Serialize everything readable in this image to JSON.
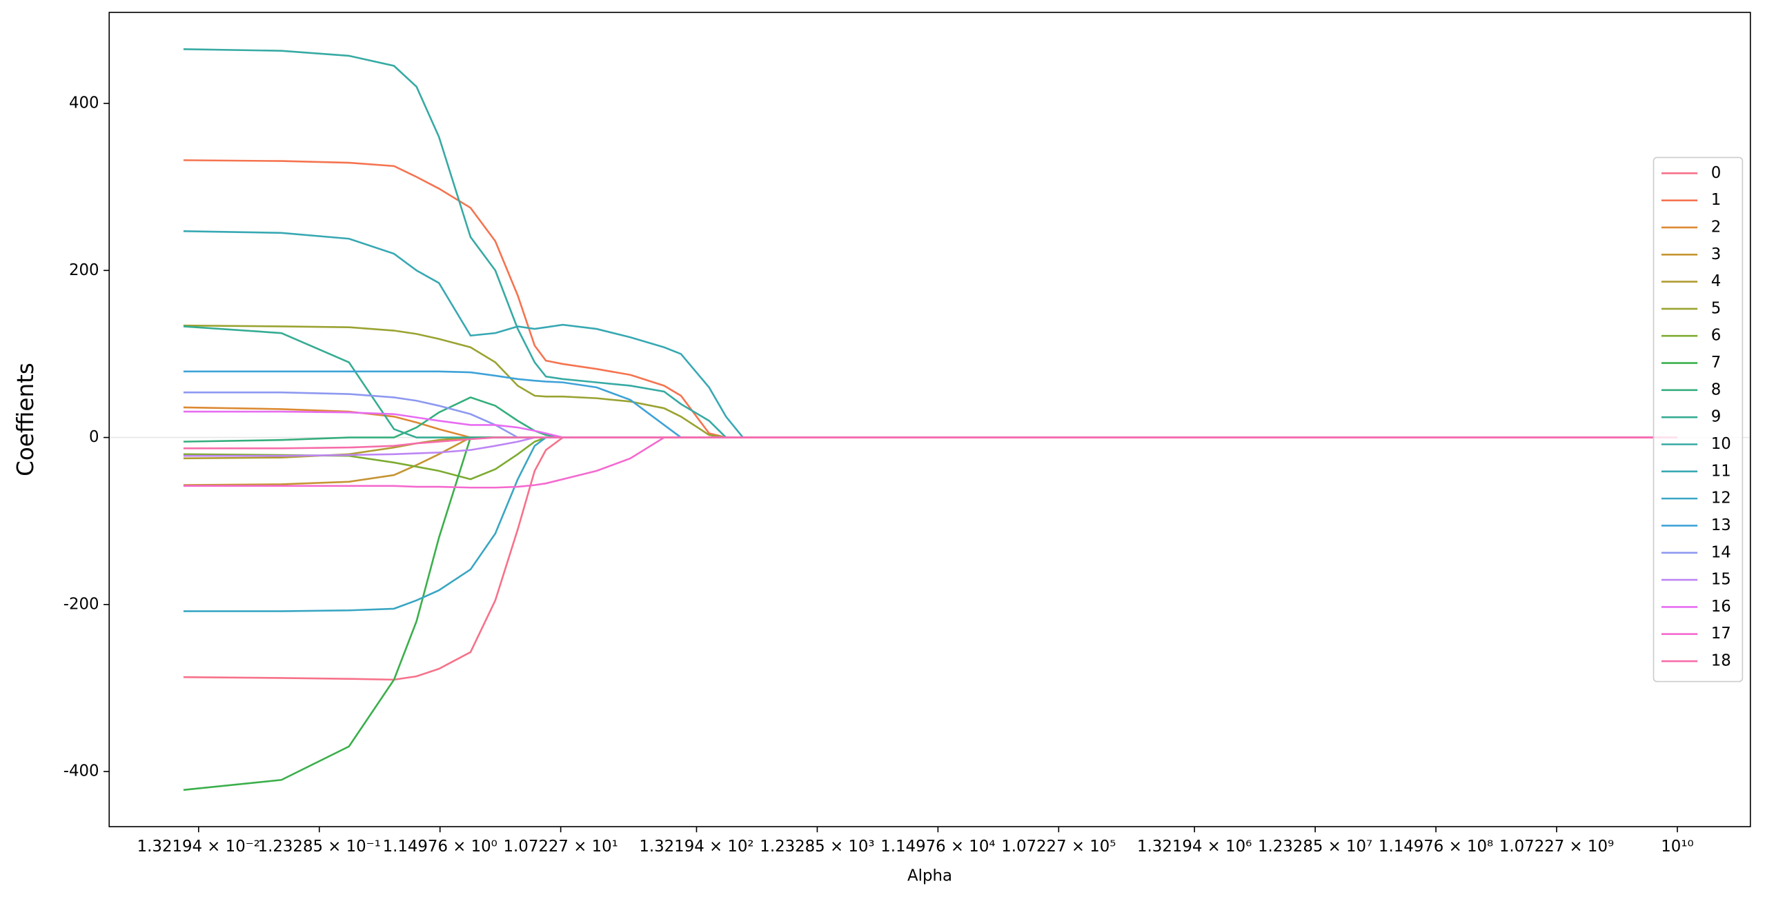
{
  "chart_data": {
    "type": "line",
    "xlabel": "Alpha",
    "ylabel": "Coeffients",
    "xscale": "log",
    "x": [
      0.01,
      0.0612,
      0.2133,
      0.4909,
      0.7447,
      1.127,
      2.022,
      3.198,
      4.842,
      6.62,
      8.15,
      11.14,
      20.8,
      38.9,
      72.6,
      99.1,
      166.7,
      228,
      312,
      716,
      10000000000
    ],
    "xlim": [
      0.00253,
      38600000000
    ],
    "ylim": [
      -466,
      509
    ],
    "xticks": [
      {
        "value": 0.0132194,
        "label": "1.32194 × 10⁻²"
      },
      {
        "value": 0.123285,
        "label": "1.23285 × 10⁻¹"
      },
      {
        "value": 1.14976,
        "label": "1.14976 × 10⁰"
      },
      {
        "value": 10.7227,
        "label": "1.07227 × 10¹"
      },
      {
        "value": 132.194,
        "label": "1.32194 × 10²"
      },
      {
        "value": 1232.85,
        "label": "1.23285 × 10³"
      },
      {
        "value": 11497.6,
        "label": "1.14976 × 10⁴"
      },
      {
        "value": 107227,
        "label": "1.07227 × 10⁵"
      },
      {
        "value": 1321940,
        "label": "1.32194 × 10⁶"
      },
      {
        "value": 12328500,
        "label": "1.23285 × 10⁷"
      },
      {
        "value": 114976000,
        "label": "1.14976 × 10⁸"
      },
      {
        "value": 1072270000,
        "label": "1.07227 × 10⁹"
      },
      {
        "value": 10000000000,
        "label": "10¹⁰"
      }
    ],
    "yticks": [
      -400,
      -200,
      0,
      200,
      400
    ],
    "hline": 0,
    "legend": "right",
    "series": [
      {
        "name": "0",
        "color": "#f77189",
        "values": [
          -287,
          -288,
          -289,
          -290,
          -286,
          -277,
          -257,
          -195,
          -110,
          -40,
          -15,
          0,
          0,
          0,
          0,
          0,
          0,
          0,
          0,
          0,
          0
        ]
      },
      {
        "name": "1",
        "color": "#f5734f",
        "values": [
          332,
          331,
          329,
          325,
          312,
          298,
          275,
          235,
          170,
          110,
          92,
          88,
          82,
          75,
          62,
          50,
          5,
          0,
          0,
          0,
          0
        ]
      },
      {
        "name": "2",
        "color": "#dc8932",
        "values": [
          36,
          34,
          31,
          25,
          18,
          10,
          0,
          0,
          0,
          0,
          0,
          0,
          0,
          0,
          0,
          0,
          0,
          0,
          0,
          0,
          0
        ]
      },
      {
        "name": "3",
        "color": "#c69432",
        "values": [
          -57,
          -56,
          -53,
          -45,
          -33,
          -20,
          0,
          0,
          0,
          0,
          0,
          0,
          0,
          0,
          0,
          0,
          0,
          0,
          0,
          0,
          0
        ]
      },
      {
        "name": "4",
        "color": "#b09c31",
        "values": [
          -25,
          -24,
          -20,
          -12,
          -7,
          -3,
          0,
          0,
          0,
          0,
          0,
          0,
          0,
          0,
          0,
          0,
          0,
          0,
          0,
          0,
          0
        ]
      },
      {
        "name": "5",
        "color": "#9aa331",
        "values": [
          134,
          133,
          132,
          128,
          124,
          118,
          108,
          90,
          62,
          50,
          49,
          49,
          47,
          43,
          35,
          25,
          3,
          0,
          0,
          0,
          0
        ]
      },
      {
        "name": "6",
        "color": "#7dab31",
        "values": [
          -20,
          -21,
          -22,
          -30,
          -35,
          -40,
          -50,
          -38,
          -20,
          -5,
          0,
          0,
          0,
          0,
          0,
          0,
          0,
          0,
          0,
          0,
          0
        ]
      },
      {
        "name": "7",
        "color": "#3aaf4a",
        "values": [
          -422,
          -410,
          -370,
          -290,
          -220,
          -120,
          0,
          0,
          0,
          0,
          0,
          0,
          0,
          0,
          0,
          0,
          0,
          0,
          0,
          0,
          0
        ]
      },
      {
        "name": "8",
        "color": "#34ae7c",
        "values": [
          -5,
          -3,
          0,
          0,
          12,
          30,
          48,
          38,
          20,
          8,
          3,
          0,
          0,
          0,
          0,
          0,
          0,
          0,
          0,
          0,
          0
        ]
      },
      {
        "name": "9",
        "color": "#35ac93",
        "values": [
          133,
          125,
          90,
          10,
          0,
          0,
          0,
          0,
          0,
          0,
          0,
          0,
          0,
          0,
          0,
          0,
          0,
          0,
          0,
          0,
          0
        ]
      },
      {
        "name": "10",
        "color": "#36aaa3",
        "values": [
          465,
          463,
          457,
          445,
          420,
          360,
          240,
          200,
          130,
          90,
          73,
          70,
          66,
          62,
          55,
          40,
          20,
          0,
          0,
          0,
          0
        ]
      },
      {
        "name": "11",
        "color": "#37a8b3",
        "values": [
          247,
          245,
          238,
          220,
          200,
          185,
          122,
          125,
          133,
          130,
          132,
          135,
          130,
          120,
          108,
          100,
          60,
          25,
          0,
          0,
          0
        ]
      },
      {
        "name": "12",
        "color": "#39a6c3",
        "values": [
          -208,
          -208,
          -207,
          -205,
          -195,
          -183,
          -158,
          -115,
          -50,
          -10,
          0,
          0,
          0,
          0,
          0,
          0,
          0,
          0,
          0,
          0,
          0
        ]
      },
      {
        "name": "13",
        "color": "#3ea2d8",
        "values": [
          79,
          79,
          79,
          79,
          79,
          79,
          78,
          74,
          70,
          68,
          67,
          66,
          60,
          45,
          15,
          0,
          0,
          0,
          0,
          0,
          0
        ]
      },
      {
        "name": "14",
        "color": "#8d98f0",
        "values": [
          54,
          54,
          52,
          48,
          44,
          38,
          28,
          15,
          0,
          0,
          0,
          0,
          0,
          0,
          0,
          0,
          0,
          0,
          0,
          0,
          0
        ]
      },
      {
        "name": "15",
        "color": "#bd85f4",
        "values": [
          -22,
          -22,
          -21,
          -20,
          -19,
          -18,
          -15,
          -10,
          -5,
          0,
          0,
          0,
          0,
          0,
          0,
          0,
          0,
          0,
          0,
          0,
          0
        ]
      },
      {
        "name": "16",
        "color": "#e76cf2",
        "values": [
          31,
          31,
          30,
          28,
          24,
          20,
          15,
          15,
          12,
          8,
          5,
          0,
          0,
          0,
          0,
          0,
          0,
          0,
          0,
          0,
          0
        ]
      },
      {
        "name": "17",
        "color": "#f569cf",
        "values": [
          -58,
          -58,
          -58,
          -58,
          -59,
          -59,
          -60,
          -60,
          -59,
          -57,
          -55,
          -50,
          -40,
          -25,
          0,
          0,
          0,
          0,
          0,
          0,
          0
        ]
      },
      {
        "name": "18",
        "color": "#f66daa",
        "values": [
          -13,
          -13,
          -12,
          -10,
          -7,
          -5,
          -2,
          0,
          0,
          0,
          0,
          0,
          0,
          0,
          0,
          0,
          0,
          0,
          0,
          0,
          0
        ]
      }
    ]
  }
}
